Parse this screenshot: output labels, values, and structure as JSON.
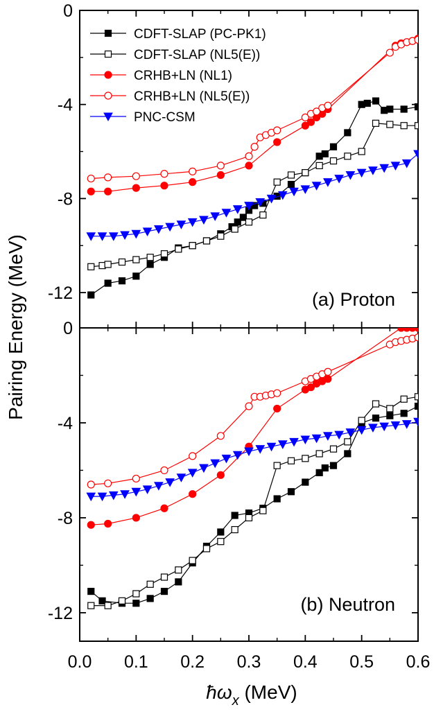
{
  "chart_data": [
    {
      "type": "line",
      "panel_label": "(a) Proton",
      "ylabel": "Pairing Energy (MeV)",
      "xlim": [
        0.0,
        0.6
      ],
      "ylim": [
        -13.5,
        0
      ],
      "yticks": [
        "0",
        "-4",
        "-8",
        "-12"
      ],
      "legend_position": "top-left",
      "series": [
        {
          "name": "CDFT-SLAP (PC-PK1)",
          "color": "#000000",
          "marker": "square",
          "filled": true,
          "x": [
            0.02,
            0.05,
            0.075,
            0.1,
            0.125,
            0.15,
            0.175,
            0.2,
            0.225,
            0.25,
            0.27,
            0.28,
            0.29,
            0.3,
            0.31,
            0.325,
            0.35,
            0.375,
            0.4,
            0.425,
            0.435,
            0.45,
            0.475,
            0.5,
            0.51,
            0.525,
            0.54,
            0.55,
            0.575,
            0.6
          ],
          "y": [
            -12.1,
            -11.6,
            -11.5,
            -11.3,
            -10.8,
            -10.5,
            -10.1,
            -10.0,
            -9.8,
            -9.5,
            -9.2,
            -9.0,
            -8.8,
            -8.5,
            -8.3,
            -8.2,
            -7.9,
            -7.4,
            -6.9,
            -6.2,
            -6.1,
            -5.8,
            -5.2,
            -4.0,
            -3.95,
            -3.85,
            -4.25,
            -4.2,
            -4.2,
            -4.1
          ]
        },
        {
          "name": "CDFT-SLAP (NL5(E))",
          "color": "#000000",
          "marker": "square",
          "filled": false,
          "x": [
            0.02,
            0.04,
            0.05,
            0.075,
            0.1,
            0.125,
            0.15,
            0.175,
            0.2,
            0.225,
            0.25,
            0.275,
            0.3,
            0.325,
            0.35,
            0.375,
            0.4,
            0.425,
            0.45,
            0.475,
            0.5,
            0.525,
            0.55,
            0.575,
            0.6
          ],
          "y": [
            -10.9,
            -10.85,
            -10.8,
            -10.7,
            -10.6,
            -10.5,
            -10.35,
            -10.15,
            -10.0,
            -9.8,
            -9.6,
            -9.3,
            -9.0,
            -8.7,
            -7.3,
            -7.0,
            -6.9,
            -6.6,
            -6.4,
            -6.2,
            -6.0,
            -4.8,
            -4.85,
            -4.9,
            -4.9
          ]
        },
        {
          "name": "CRHB+LN (NL1)",
          "color": "#ff0000",
          "marker": "circle",
          "filled": true,
          "x": [
            0.02,
            0.05,
            0.1,
            0.15,
            0.2,
            0.25,
            0.3,
            0.35,
            0.4,
            0.41,
            0.42,
            0.43,
            0.44,
            0.56,
            0.57,
            0.58,
            0.59,
            0.6
          ],
          "y": [
            -7.7,
            -7.7,
            -7.55,
            -7.45,
            -7.3,
            -7.0,
            -6.6,
            -5.6,
            -4.9,
            -4.75,
            -4.55,
            -4.4,
            -4.2,
            -1.5,
            -1.4,
            -1.35,
            -1.3,
            -1.2
          ]
        },
        {
          "name": "CRHB+LN (NL5(E))",
          "color": "#ff0000",
          "marker": "circle",
          "filled": false,
          "x": [
            0.02,
            0.05,
            0.1,
            0.15,
            0.2,
            0.25,
            0.3,
            0.31,
            0.32,
            0.33,
            0.34,
            0.35,
            0.4,
            0.41,
            0.42,
            0.43,
            0.44,
            0.55,
            0.56,
            0.57,
            0.58,
            0.59,
            0.6
          ],
          "y": [
            -7.15,
            -7.1,
            -7.05,
            -6.95,
            -6.85,
            -6.6,
            -6.2,
            -5.8,
            -5.4,
            -5.3,
            -5.2,
            -5.1,
            -4.55,
            -4.4,
            -4.3,
            -4.15,
            -4.05,
            -1.8,
            -1.55,
            -1.45,
            -1.35,
            -1.3,
            -1.25
          ]
        },
        {
          "name": "PNC-CSM",
          "color": "#0000ff",
          "marker": "triangle-down",
          "filled": true,
          "x": [
            0.02,
            0.04,
            0.06,
            0.08,
            0.1,
            0.12,
            0.14,
            0.16,
            0.18,
            0.2,
            0.22,
            0.24,
            0.26,
            0.28,
            0.3,
            0.32,
            0.34,
            0.36,
            0.38,
            0.4,
            0.42,
            0.44,
            0.46,
            0.48,
            0.5,
            0.52,
            0.54,
            0.56,
            0.58,
            0.6
          ],
          "y": [
            -9.6,
            -9.6,
            -9.6,
            -9.55,
            -9.5,
            -9.4,
            -9.3,
            -9.2,
            -9.1,
            -9.0,
            -8.9,
            -8.75,
            -8.6,
            -8.45,
            -8.3,
            -8.15,
            -8.0,
            -7.85,
            -7.7,
            -7.6,
            -7.45,
            -7.3,
            -7.15,
            -7.0,
            -6.9,
            -6.8,
            -6.7,
            -6.6,
            -6.5,
            -6.1
          ]
        }
      ]
    },
    {
      "type": "line",
      "panel_label": "(b) Neutron",
      "ylabel": "Pairing Energy (MeV)",
      "xlabel_prefix": "ħω",
      "xlabel_sub": "x",
      "xlabel_suffix": " (MeV)",
      "xlim": [
        0.0,
        0.6
      ],
      "ylim": [
        -13.2,
        0
      ],
      "yticks": [
        "0",
        "-4",
        "-8",
        "-12"
      ],
      "xticks": [
        "0.0",
        "0.1",
        "0.2",
        "0.3",
        "0.4",
        "0.5",
        "0.6"
      ],
      "series": [
        {
          "name": "CDFT-SLAP (PC-PK1)",
          "color": "#000000",
          "marker": "square",
          "filled": true,
          "x": [
            0.02,
            0.04,
            0.075,
            0.1,
            0.125,
            0.15,
            0.175,
            0.2,
            0.225,
            0.25,
            0.275,
            0.3,
            0.325,
            0.35,
            0.375,
            0.4,
            0.425,
            0.435,
            0.45,
            0.475,
            0.5,
            0.525,
            0.55,
            0.575,
            0.6
          ],
          "y": [
            -11.1,
            -11.5,
            -11.6,
            -11.6,
            -11.4,
            -11.1,
            -10.7,
            -9.9,
            -9.2,
            -8.6,
            -7.9,
            -7.8,
            -7.6,
            -7.2,
            -6.9,
            -6.5,
            -6.1,
            -5.9,
            -5.8,
            -5.3,
            -4.0,
            -3.8,
            -3.7,
            -3.6,
            -3.3
          ]
        },
        {
          "name": "CDFT-SLAP (NL5(E))",
          "color": "#000000",
          "marker": "square",
          "filled": false,
          "x": [
            0.02,
            0.05,
            0.075,
            0.1,
            0.125,
            0.15,
            0.175,
            0.2,
            0.225,
            0.25,
            0.275,
            0.3,
            0.325,
            0.35,
            0.375,
            0.4,
            0.425,
            0.45,
            0.475,
            0.5,
            0.525,
            0.55,
            0.575,
            0.6
          ],
          "y": [
            -11.7,
            -11.7,
            -11.5,
            -11.2,
            -10.8,
            -10.5,
            -10.2,
            -9.8,
            -9.3,
            -9.0,
            -8.5,
            -8.0,
            -7.7,
            -5.8,
            -5.6,
            -5.5,
            -5.3,
            -5.1,
            -4.8,
            -3.9,
            -3.2,
            -3.4,
            -3.0,
            -2.9
          ]
        },
        {
          "name": "CRHB+LN (NL1)",
          "color": "#ff0000",
          "marker": "circle",
          "filled": true,
          "x": [
            0.02,
            0.05,
            0.1,
            0.15,
            0.2,
            0.25,
            0.3,
            0.35,
            0.4,
            0.41,
            0.42,
            0.43,
            0.44,
            0.57,
            0.58,
            0.59,
            0.6
          ],
          "y": [
            -8.3,
            -8.25,
            -8.0,
            -7.6,
            -7.0,
            -6.2,
            -5.0,
            -3.4,
            -2.6,
            -2.5,
            -2.35,
            -2.25,
            -2.15,
            0,
            0,
            0,
            0
          ]
        },
        {
          "name": "CRHB+LN (NL5(E))",
          "color": "#ff0000",
          "marker": "circle",
          "filled": false,
          "x": [
            0.02,
            0.05,
            0.1,
            0.15,
            0.2,
            0.25,
            0.3,
            0.31,
            0.32,
            0.33,
            0.34,
            0.35,
            0.4,
            0.41,
            0.42,
            0.43,
            0.44,
            0.55,
            0.56,
            0.57,
            0.58,
            0.59,
            0.6
          ],
          "y": [
            -6.6,
            -6.55,
            -6.35,
            -6.0,
            -5.4,
            -4.55,
            -3.3,
            -2.9,
            -2.9,
            -2.85,
            -2.8,
            -2.75,
            -2.25,
            -2.15,
            -2.05,
            -1.95,
            -1.85,
            -0.7,
            -0.6,
            -0.55,
            -0.5,
            -0.45,
            -0.4
          ]
        },
        {
          "name": "PNC-CSM",
          "color": "#0000ff",
          "marker": "triangle-down",
          "filled": true,
          "x": [
            0.02,
            0.04,
            0.06,
            0.08,
            0.1,
            0.12,
            0.14,
            0.16,
            0.18,
            0.2,
            0.22,
            0.24,
            0.26,
            0.28,
            0.3,
            0.32,
            0.34,
            0.36,
            0.38,
            0.4,
            0.42,
            0.44,
            0.46,
            0.48,
            0.5,
            0.52,
            0.54,
            0.56,
            0.58,
            0.6
          ],
          "y": [
            -7.1,
            -7.1,
            -7.05,
            -7.0,
            -6.9,
            -6.8,
            -6.65,
            -6.5,
            -6.3,
            -6.1,
            -5.9,
            -5.7,
            -5.5,
            -5.35,
            -5.2,
            -5.1,
            -5.0,
            -4.9,
            -4.8,
            -4.7,
            -4.65,
            -4.55,
            -4.5,
            -4.4,
            -4.3,
            -4.2,
            -4.15,
            -4.1,
            -4.05,
            -3.95
          ]
        }
      ]
    }
  ]
}
